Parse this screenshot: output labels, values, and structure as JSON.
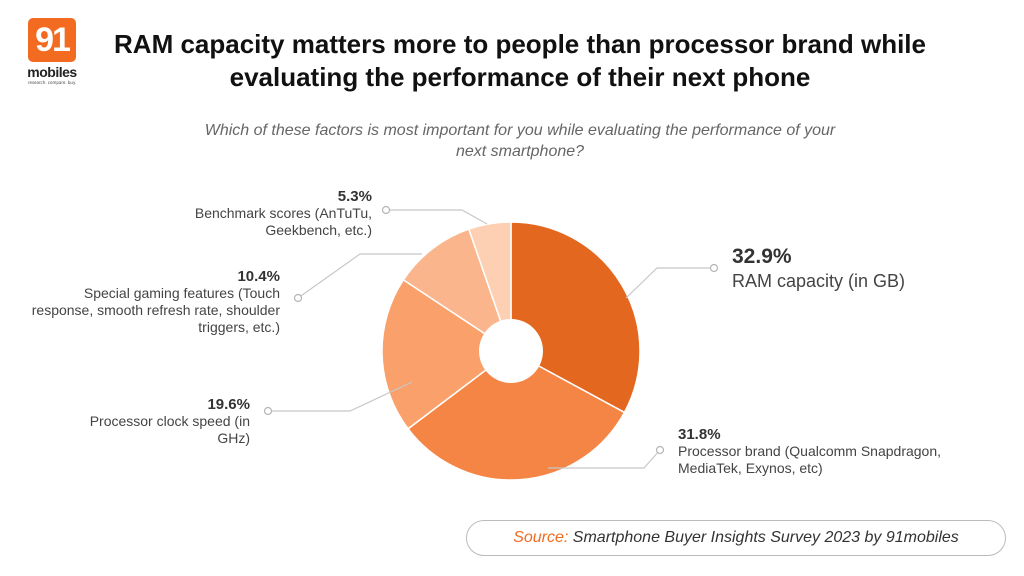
{
  "brand": {
    "logo_number": "91",
    "logo_name": "mobiles",
    "logo_tagline": "research. compare. buy.",
    "accent_color": "#F26B21"
  },
  "title": "RAM capacity matters more to people than processor brand while evaluating the performance of their next phone",
  "subtitle": "Which of these factors is most important for you while evaluating the performance of your next smartphone?",
  "source": {
    "label": "Source:",
    "text": "Smartphone Buyer Insights Survey 2023 by 91mobiles"
  },
  "chart_data": {
    "type": "pie",
    "variant": "donut",
    "title": "Which of these factors is most important for you while evaluating the performance of your next smartphone?",
    "start": "12 o'clock, clockwise",
    "slices": [
      {
        "label": "RAM capacity (in GB)",
        "value": 32.9,
        "value_label": "32.9%",
        "color": "#E4671F"
      },
      {
        "label": "Processor brand (Qualcomm Snapdragon, MediaTek, Exynos, etc)",
        "value": 31.8,
        "value_label": "31.8%",
        "color": "#F58544"
      },
      {
        "label": "Processor clock speed (in GHz)",
        "value": 19.6,
        "value_label": "19.6%",
        "color": "#F9A06B"
      },
      {
        "label": "Special gaming features (Touch response, smooth refresh rate, shoulder triggers, etc.)",
        "value": 10.4,
        "value_label": "10.4%",
        "color": "#FBB58C"
      },
      {
        "label": "Benchmark scores (AnTuTu, Geekbench, etc.)",
        "value": 5.3,
        "value_label": "5.3%",
        "color": "#FDD0B4"
      }
    ],
    "legend": "none (callout labels)"
  }
}
